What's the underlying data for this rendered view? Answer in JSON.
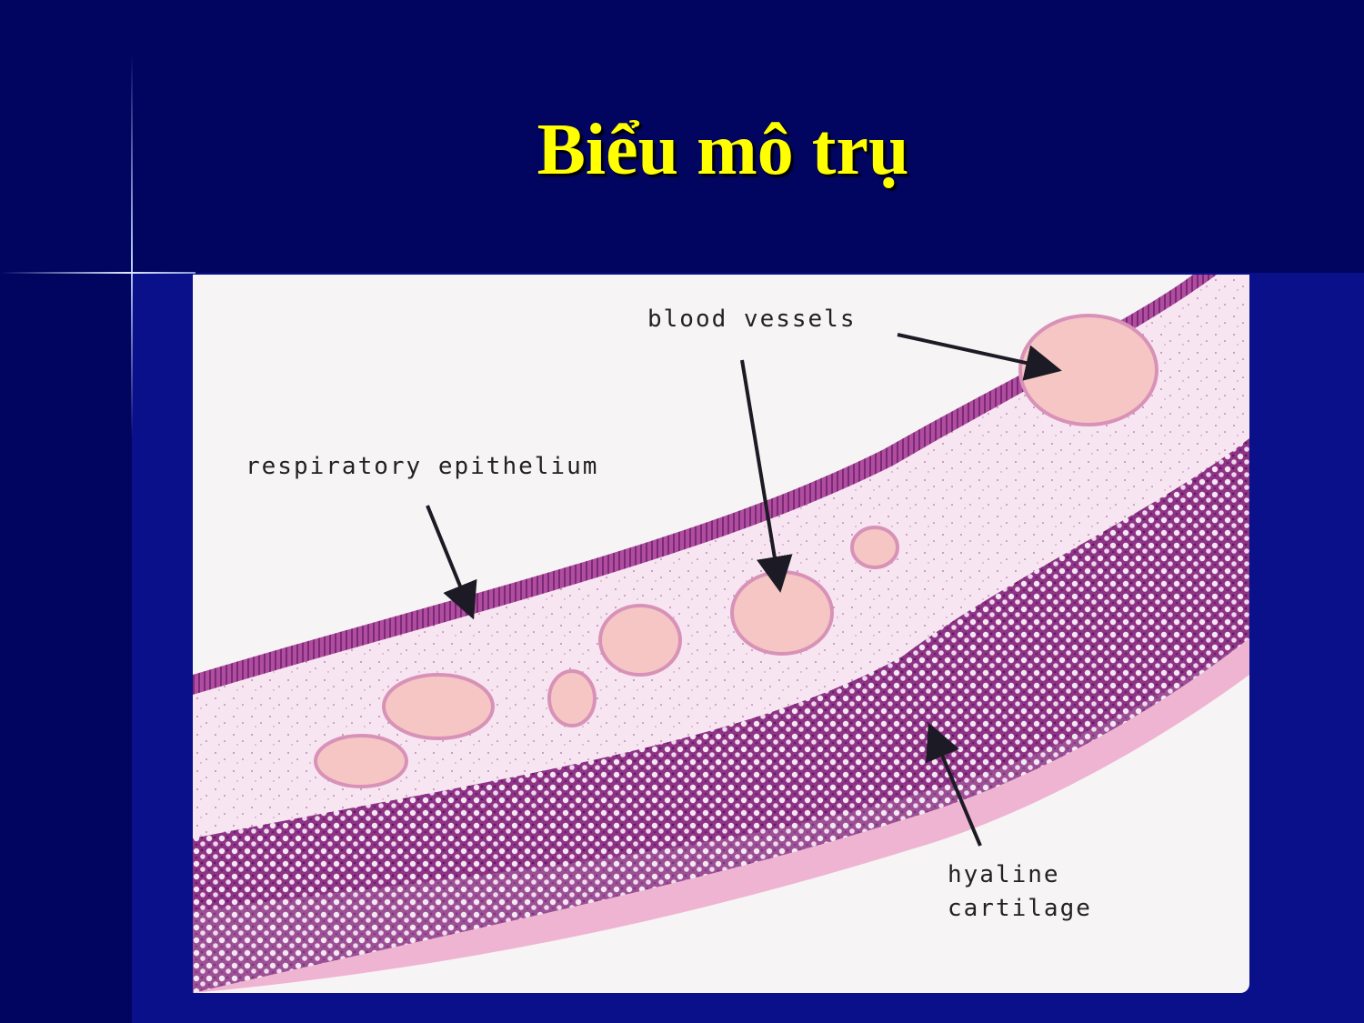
{
  "slide": {
    "title": "Biểu mô trụ"
  },
  "figure": {
    "labels": {
      "blood_vessels": "blood vessels",
      "respiratory_epithelium": "respiratory epithelium",
      "hyaline_line1": "hyaline",
      "hyaline_line2": "cartilage"
    }
  },
  "colors": {
    "background": "#0a0f8a",
    "band": "#020560",
    "title": "#ffff00",
    "tissue_pink": "#f0bcd8",
    "cartilage_purple": "#9a3a8e",
    "vessel": "#f6c6c4"
  }
}
